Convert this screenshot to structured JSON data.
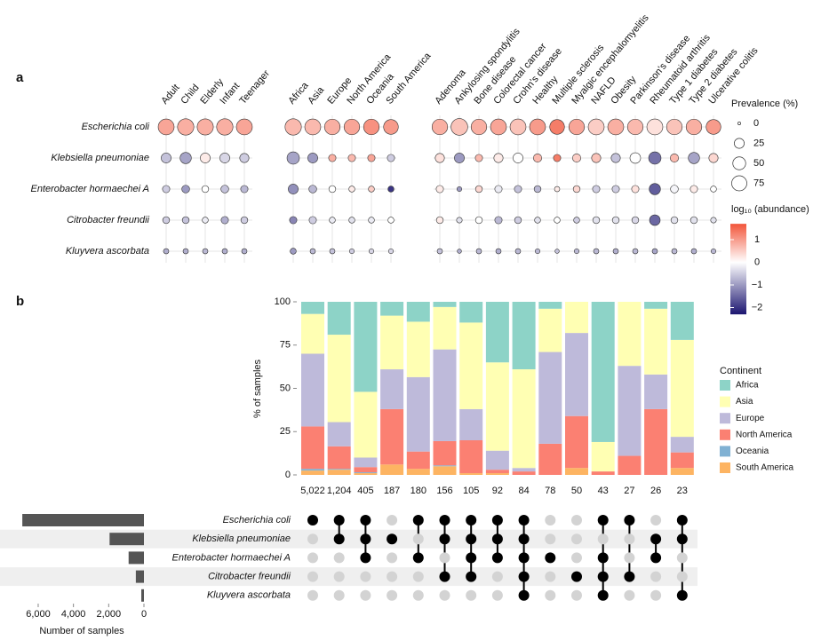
{
  "chart_data": [
    {
      "type": "dot-matrix",
      "panel": "a",
      "rows": [
        "Escherichia coli",
        "Klebsiella pneumoniae",
        "Enterobacter hormaechei A",
        "Citrobacter freundii",
        "Kluyvera ascorbata"
      ],
      "column_groups": [
        [
          "Adult",
          "Child",
          "Elderly",
          "Infant",
          "Teenager"
        ],
        [
          "Africa",
          "Asia",
          "Europe",
          "North America",
          "Oceania",
          "South America"
        ],
        [
          "Adenoma",
          "Ankylosing spondylitis",
          "Bone disease",
          "Colorectal cancer",
          "Crohn's disease",
          "Healthy",
          "Multiple sclerosis",
          "Myalgic encephalomyelitis",
          "NAFLD",
          "Obesity",
          "Parkinson's disease",
          "Rheumatoid arthritis",
          "Type 1 diabetes",
          "Type 2 diabetes",
          "Ulcerative colitis"
        ]
      ],
      "prevalence": [
        [
          85,
          90,
          88,
          90,
          85,
          90,
          85,
          80,
          80,
          80,
          70,
          80,
          95,
          80,
          85,
          85,
          85,
          70,
          80,
          85,
          85,
          80,
          85,
          80,
          80,
          70
        ],
        [
          25,
          35,
          25,
          25,
          20,
          45,
          25,
          10,
          10,
          10,
          10,
          20,
          25,
          10,
          20,
          25,
          15,
          10,
          15,
          20,
          20,
          30,
          45,
          15,
          35,
          20
        ],
        [
          10,
          12,
          8,
          12,
          10,
          25,
          12,
          8,
          5,
          5,
          5,
          10,
          2,
          8,
          10,
          10,
          8,
          3,
          8,
          10,
          10,
          10,
          35,
          12,
          10,
          5
        ],
        [
          8,
          8,
          5,
          10,
          8,
          10,
          10,
          5,
          5,
          5,
          5,
          8,
          4,
          8,
          10,
          8,
          5,
          5,
          5,
          8,
          8,
          8,
          30,
          8,
          8,
          4
        ],
        [
          3,
          3,
          3,
          3,
          3,
          5,
          3,
          3,
          2,
          2,
          2,
          3,
          1,
          3,
          3,
          3,
          2,
          1,
          2,
          3,
          3,
          3,
          3,
          3,
          3,
          2
        ]
      ],
      "abundance": [
        [
          0.9,
          0.8,
          0.8,
          0.8,
          0.9,
          0.7,
          0.7,
          0.8,
          0.9,
          1.1,
          1.0,
          0.8,
          0.6,
          0.8,
          0.9,
          0.6,
          1.0,
          1.3,
          0.9,
          0.5,
          0.8,
          0.7,
          0.3,
          0.6,
          0.8,
          1.0
        ],
        [
          -0.6,
          -0.9,
          0.2,
          -0.4,
          -0.5,
          -0.9,
          -1.0,
          0.8,
          0.7,
          0.9,
          -0.5,
          0.3,
          -1.0,
          0.7,
          0.2,
          0,
          0.7,
          1.3,
          0.5,
          0.6,
          -0.6,
          0,
          -1.4,
          0.7,
          -0.9,
          0.4
        ],
        [
          -0.5,
          -1.0,
          0,
          -0.6,
          -0.7,
          -1.1,
          -0.7,
          0,
          0.2,
          0.5,
          -2.0,
          0.2,
          -1.0,
          0.4,
          -0.2,
          -0.6,
          -0.7,
          0.2,
          0.4,
          -0.5,
          -0.5,
          0.3,
          -1.6,
          -0.1,
          0.2,
          0
        ],
        [
          -0.5,
          -0.6,
          -0.2,
          -0.8,
          -0.5,
          -1.2,
          -0.5,
          -0.2,
          -0.3,
          -0.2,
          0,
          0.2,
          -0.3,
          0,
          -0.7,
          -0.5,
          -0.3,
          0,
          -0.5,
          -0.3,
          -0.3,
          -0.4,
          -1.5,
          -0.3,
          -0.3,
          -0.3
        ],
        [
          -0.8,
          -0.8,
          -0.7,
          -0.8,
          -0.8,
          -1.0,
          -0.7,
          -0.6,
          -0.5,
          -0.4,
          -0.4,
          -0.6,
          -0.8,
          -0.7,
          -0.8,
          -0.7,
          -0.7,
          -0.6,
          -0.7,
          -0.7,
          -0.8,
          -0.7,
          -0.9,
          -0.7,
          -0.8,
          -0.7
        ]
      ],
      "size_title": "Prevalence (%)",
      "size_ticks": [
        0,
        25,
        50,
        75
      ],
      "color_title": "log₁₀ (abundance)",
      "colorlim": [
        -2.3,
        1.7
      ],
      "colorticks": [
        1,
        0,
        {
          "value": -1,
          "label": "−1"
        },
        {
          "value": -2,
          "label": "−2"
        }
      ],
      "colors": {
        "low": "#1c1670",
        "mid": "#ffffff",
        "high": "#f2553a"
      }
    },
    {
      "type": "stacked-bar",
      "panel": "b",
      "intersections": {
        "values": [
          5022,
          1204,
          405,
          187,
          180,
          156,
          105,
          92,
          84,
          78,
          50,
          43,
          27,
          26,
          23
        ],
        "value_labels": [
          "5,022",
          "1,204",
          "405",
          "187",
          "180",
          "156",
          "105",
          "92",
          "84",
          "78",
          "50",
          "43",
          "27",
          "26",
          "23"
        ]
      },
      "ylabel": "% of samples",
      "ylim": [
        0,
        100
      ],
      "yticks": [
        0,
        25,
        50,
        75,
        100
      ],
      "legend_title": "Continent",
      "series": [
        {
          "name": "Africa",
          "color": "#8dd3c7",
          "values": [
            7,
            19,
            52,
            8,
            11.5,
            3,
            12,
            35,
            39,
            4,
            0,
            81,
            0,
            4,
            22
          ]
        },
        {
          "name": "Asia",
          "color": "#ffffb3",
          "values": [
            23,
            50.5,
            38,
            31,
            32,
            24.5,
            50,
            51,
            57,
            25,
            18,
            17,
            37,
            38,
            56
          ]
        },
        {
          "name": "Europe",
          "color": "#bebada",
          "values": [
            42,
            14,
            5.5,
            23,
            43,
            53,
            18,
            11,
            2,
            53,
            48,
            0,
            52,
            20,
            9
          ]
        },
        {
          "name": "North America",
          "color": "#fb8072",
          "values": [
            24.5,
            13,
            3,
            32,
            10,
            14,
            19,
            2,
            2,
            18,
            30,
            2,
            11,
            38,
            9
          ]
        },
        {
          "name": "Oceania",
          "color": "#80b1d3",
          "values": [
            1,
            0.5,
            0.5,
            0,
            0,
            0.5,
            0,
            0,
            0,
            0,
            0,
            0,
            0,
            0,
            0
          ]
        },
        {
          "name": "South America",
          "color": "#fdb462",
          "values": [
            2.5,
            3,
            1,
            6,
            3.5,
            5,
            1,
            1,
            0,
            0,
            4,
            0,
            0,
            0,
            4
          ]
        }
      ]
    },
    {
      "type": "matrix",
      "rows": [
        "Escherichia coli",
        "Klebsiella pneumoniae",
        "Enterobacter hormaechei A",
        "Citrobacter freundii",
        "Kluyvera ascorbata"
      ],
      "membership": [
        [
          1,
          1,
          1,
          0,
          1,
          1,
          1,
          1,
          1,
          0,
          0,
          1,
          1,
          0,
          1
        ],
        [
          0,
          1,
          1,
          1,
          0,
          1,
          1,
          1,
          1,
          0,
          0,
          0,
          0,
          1,
          1
        ],
        [
          0,
          0,
          1,
          0,
          1,
          0,
          1,
          1,
          1,
          1,
          0,
          1,
          0,
          1,
          0
        ],
        [
          0,
          0,
          0,
          0,
          0,
          1,
          1,
          0,
          1,
          0,
          1,
          1,
          1,
          0,
          0
        ],
        [
          0,
          0,
          0,
          0,
          0,
          0,
          0,
          0,
          1,
          0,
          0,
          1,
          0,
          0,
          1
        ]
      ]
    },
    {
      "type": "hbar",
      "values": [
        6900,
        1950,
        870,
        460,
        150
      ],
      "color": "#555555",
      "xlim": [
        8000,
        0
      ],
      "xticks": [
        {
          "value": 6000,
          "label": "6,000"
        },
        {
          "value": 4000,
          "label": "4,000"
        },
        {
          "value": 2000,
          "label": "2,000"
        },
        0
      ],
      "xlabel": "Number of samples"
    }
  ]
}
